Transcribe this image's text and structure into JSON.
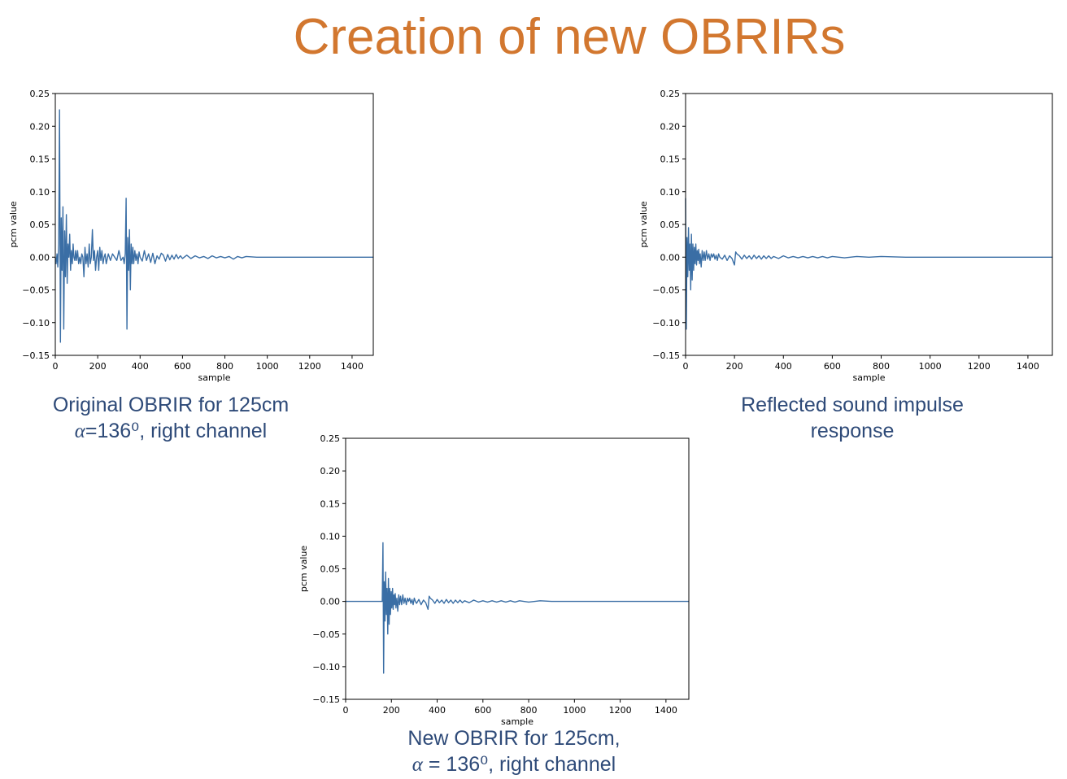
{
  "slide": {
    "title": "Creation of new OBRIRs",
    "captions": {
      "original_line1": "Original OBRIR for 125cm",
      "original_alpha": "α",
      "original_line2_rest": "=136⁰, right channel",
      "reflected_line1": "Reflected sound impulse",
      "reflected_line2": "response",
      "new_line1": "New OBRIR for 125cm,",
      "new_alpha": "α",
      "new_line2_rest": " = 136⁰, right channel"
    }
  },
  "colors": {
    "line": "#3a6ea5",
    "title": "#d2772f",
    "caption": "#2e4a78"
  },
  "chart_data": [
    {
      "id": "original",
      "type": "line",
      "xlabel": "sample",
      "ylabel": "pcm value",
      "xlim": [
        0,
        1500
      ],
      "ylim": [
        -0.15,
        0.25
      ],
      "xticks": [
        0,
        200,
        400,
        600,
        800,
        1000,
        1200,
        1400
      ],
      "yticks": [
        -0.15,
        -0.1,
        -0.05,
        0.0,
        0.05,
        0.1,
        0.15,
        0.2,
        0.25
      ],
      "ytick_labels": [
        "−0.15",
        "−0.10",
        "−0.05",
        "0.00",
        "0.05",
        "0.10",
        "0.15",
        "0.20",
        "0.25"
      ],
      "series": [
        {
          "x": [
            0,
            4,
            8,
            12,
            16,
            20,
            24,
            28,
            32,
            36,
            40,
            44,
            48,
            52,
            56,
            60,
            64,
            68,
            72,
            76,
            80,
            84,
            88,
            92,
            96,
            100,
            105,
            110,
            115,
            120,
            125,
            130,
            135,
            140,
            145,
            150,
            155,
            160,
            165,
            170,
            175,
            180,
            185,
            190,
            195,
            200,
            205,
            210,
            215,
            220,
            225,
            230,
            235,
            240,
            250,
            260,
            270,
            280,
            290,
            300,
            310,
            320,
            325,
            330,
            334,
            338,
            342,
            346,
            350,
            354,
            358,
            362,
            366,
            370,
            375,
            380,
            385,
            390,
            395,
            400,
            410,
            420,
            430,
            440,
            450,
            460,
            470,
            480,
            490,
            500,
            510,
            520,
            530,
            540,
            550,
            560,
            570,
            580,
            590,
            600,
            620,
            640,
            660,
            680,
            700,
            720,
            740,
            760,
            780,
            800,
            820,
            840,
            860,
            880,
            900,
            950,
            1000,
            1100,
            1200,
            1300,
            1400,
            1500
          ],
          "y": [
            0.0,
            -0.01,
            0.005,
            -0.015,
            0.02,
            0.225,
            -0.13,
            0.06,
            -0.02,
            0.077,
            -0.11,
            0.04,
            -0.03,
            0.065,
            -0.04,
            0.02,
            0.0,
            0.035,
            -0.02,
            0.01,
            -0.01,
            0.02,
            0.0,
            -0.005,
            0.01,
            -0.005,
            0.01,
            -0.01,
            0.0,
            -0.01,
            0.005,
            0.0,
            -0.03,
            0.015,
            -0.01,
            0.005,
            -0.015,
            0.02,
            -0.01,
            0.0,
            0.042,
            -0.005,
            0.01,
            -0.02,
            0.0,
            0.01,
            -0.02,
            0.015,
            -0.005,
            0.01,
            -0.01,
            0.0,
            0.005,
            -0.01,
            0.005,
            -0.005,
            0.005,
            0.0,
            -0.005,
            0.01,
            -0.005,
            0.0,
            -0.01,
            0.005,
            0.09,
            -0.11,
            0.03,
            -0.02,
            0.042,
            -0.05,
            0.02,
            -0.01,
            0.015,
            -0.01,
            0.01,
            -0.005,
            0.005,
            -0.01,
            0.008,
            0.0,
            -0.006,
            0.01,
            -0.005,
            0.005,
            -0.008,
            0.006,
            -0.01,
            0.002,
            -0.003,
            0.006,
            0.003,
            -0.006,
            0.004,
            -0.004,
            0.003,
            -0.003,
            0.004,
            -0.002,
            0.002,
            -0.002,
            0.003,
            -0.002,
            0.002,
            -0.001,
            0.001,
            -0.002,
            0.002,
            -0.001,
            0.001,
            -0.001,
            0.001,
            -0.003,
            0.001,
            -0.001,
            0.001,
            0.0,
            0.0,
            0.0,
            0.0,
            0.0,
            0.0,
            0.0
          ]
        }
      ]
    },
    {
      "id": "reflected",
      "type": "line",
      "xlabel": "sample",
      "ylabel": "pcm value",
      "xlim": [
        0,
        1500
      ],
      "ylim": [
        -0.15,
        0.25
      ],
      "xticks": [
        0,
        200,
        400,
        600,
        800,
        1000,
        1200,
        1400
      ],
      "yticks": [
        -0.15,
        -0.1,
        -0.05,
        0.0,
        0.05,
        0.1,
        0.15,
        0.2,
        0.25
      ],
      "ytick_labels": [
        "−0.15",
        "−0.10",
        "−0.05",
        "0.00",
        "0.05",
        "0.10",
        "0.15",
        "0.20",
        "0.25"
      ],
      "series": [
        {
          "x": [
            0,
            3,
            6,
            9,
            12,
            15,
            18,
            21,
            24,
            27,
            30,
            33,
            36,
            39,
            42,
            45,
            48,
            51,
            54,
            57,
            60,
            64,
            68,
            72,
            76,
            80,
            85,
            90,
            95,
            100,
            105,
            110,
            115,
            120,
            125,
            130,
            135,
            140,
            150,
            160,
            170,
            180,
            190,
            200,
            205,
            210,
            220,
            230,
            240,
            250,
            260,
            270,
            280,
            290,
            300,
            310,
            320,
            330,
            340,
            350,
            360,
            380,
            400,
            420,
            440,
            460,
            480,
            500,
            520,
            540,
            560,
            580,
            600,
            650,
            700,
            750,
            800,
            900,
            1000,
            1100,
            1200,
            1300,
            1400,
            1500
          ],
          "y": [
            0.09,
            -0.11,
            0.03,
            -0.03,
            0.045,
            -0.02,
            0.02,
            -0.05,
            0.035,
            -0.035,
            0.02,
            -0.02,
            0.015,
            -0.01,
            0.02,
            -0.012,
            0.01,
            -0.005,
            0.012,
            -0.01,
            0.005,
            -0.015,
            0.01,
            -0.005,
            0.008,
            -0.005,
            0.01,
            -0.003,
            0.005,
            -0.005,
            0.005,
            0.0,
            0.005,
            -0.003,
            0.003,
            -0.005,
            0.005,
            0.0,
            -0.003,
            0.003,
            -0.005,
            0.002,
            -0.002,
            -0.012,
            0.008,
            0.005,
            0.002,
            -0.003,
            0.003,
            -0.002,
            0.002,
            -0.003,
            0.003,
            -0.002,
            0.002,
            -0.003,
            0.002,
            -0.002,
            0.002,
            -0.002,
            0.001,
            -0.002,
            0.002,
            -0.001,
            0.001,
            -0.001,
            0.001,
            -0.001,
            0.001,
            -0.001,
            0.001,
            -0.001,
            0.001,
            -0.001,
            0.001,
            0.0,
            0.001,
            0.0,
            0.0,
            0.0,
            0.0,
            0.0,
            0.0,
            0.0
          ]
        }
      ]
    },
    {
      "id": "new",
      "type": "line",
      "xlabel": "sample",
      "ylabel": "pcm value",
      "xlim": [
        0,
        1500
      ],
      "ylim": [
        -0.15,
        0.25
      ],
      "xticks": [
        0,
        200,
        400,
        600,
        800,
        1000,
        1200,
        1400
      ],
      "yticks": [
        -0.15,
        -0.1,
        -0.05,
        0.0,
        0.05,
        0.1,
        0.15,
        0.2,
        0.25
      ],
      "ytick_labels": [
        "−0.15",
        "−0.10",
        "−0.05",
        "0.00",
        "0.05",
        "0.10",
        "0.15",
        "0.20",
        "0.25"
      ],
      "series": [
        {
          "x": [
            0,
            100,
            150,
            160,
            163,
            166,
            169,
            172,
            175,
            178,
            181,
            184,
            187,
            190,
            193,
            196,
            199,
            202,
            205,
            208,
            211,
            214,
            217,
            220,
            224,
            228,
            232,
            236,
            240,
            245,
            250,
            255,
            260,
            265,
            270,
            275,
            280,
            285,
            290,
            295,
            300,
            305,
            310,
            320,
            330,
            340,
            350,
            360,
            365,
            370,
            380,
            390,
            400,
            410,
            420,
            430,
            440,
            450,
            460,
            470,
            480,
            490,
            500,
            510,
            520,
            540,
            560,
            580,
            600,
            620,
            640,
            660,
            680,
            700,
            720,
            740,
            760,
            800,
            850,
            900,
            950,
            1000,
            1100,
            1200,
            1300,
            1400,
            1500
          ],
          "y": [
            0.0,
            0.0,
            0.0,
            0.0,
            0.09,
            -0.11,
            0.03,
            -0.03,
            0.045,
            -0.02,
            0.02,
            -0.05,
            0.035,
            -0.035,
            0.02,
            -0.02,
            0.015,
            -0.01,
            0.02,
            -0.012,
            0.01,
            -0.005,
            0.012,
            -0.01,
            0.005,
            -0.015,
            0.01,
            -0.005,
            0.008,
            -0.005,
            0.01,
            -0.003,
            0.005,
            -0.005,
            0.005,
            0.0,
            0.005,
            -0.003,
            0.003,
            -0.005,
            0.005,
            0.0,
            -0.003,
            0.003,
            -0.005,
            0.002,
            -0.002,
            -0.012,
            0.008,
            0.005,
            0.002,
            -0.003,
            0.003,
            -0.002,
            0.002,
            -0.003,
            0.003,
            -0.002,
            0.002,
            -0.003,
            0.002,
            -0.002,
            0.002,
            -0.002,
            0.001,
            -0.002,
            0.002,
            -0.001,
            0.001,
            -0.001,
            0.001,
            -0.001,
            0.001,
            -0.001,
            0.001,
            -0.001,
            0.001,
            -0.001,
            0.001,
            0.0,
            0.0,
            0.0,
            0.0,
            0.0,
            0.0,
            0.0,
            0.0
          ]
        }
      ]
    }
  ]
}
